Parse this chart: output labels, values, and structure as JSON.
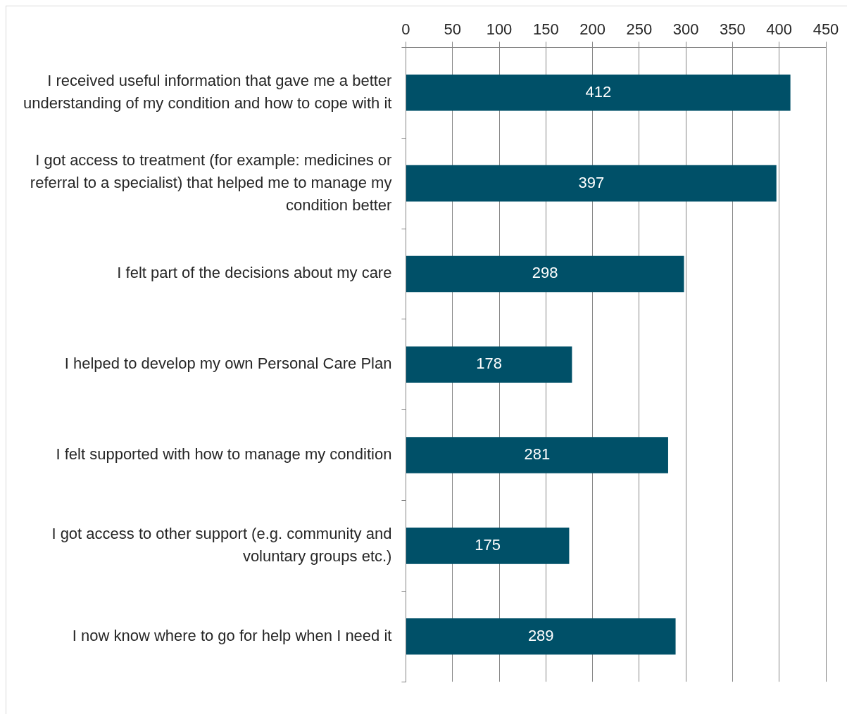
{
  "chart_data": {
    "type": "bar",
    "orientation": "horizontal",
    "categories": [
      "I received useful information that gave me a better understanding of my condition and how to cope with it",
      "I got access to treatment (for example: medicines or referral to a specialist) that helped me to manage my condition better",
      "I felt part of the decisions about my care",
      "I helped to develop my own Personal Care Plan",
      "I felt supported with how to manage my condition",
      "I got access to other support (e.g. community and voluntary groups etc.)",
      "I now know where to go for help when I need it"
    ],
    "values": [
      412,
      397,
      298,
      178,
      281,
      175,
      289
    ],
    "color": "#005068",
    "xlim": [
      0,
      450
    ],
    "xticks": [
      0,
      50,
      100,
      150,
      200,
      250,
      300,
      350,
      400,
      450
    ],
    "grid": "x",
    "legend": false,
    "data_labels": true
  }
}
